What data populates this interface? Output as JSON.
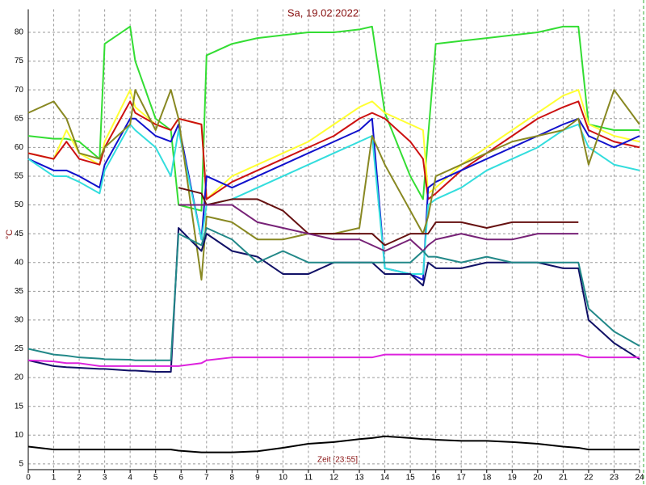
{
  "chart_data": {
    "type": "line",
    "title": "Sa, 19.02.2022",
    "x_label": "Zeit [23:55]",
    "y_label": "°C",
    "x": [
      0,
      1,
      1.5,
      2,
      2.8,
      3,
      4,
      4.2,
      5,
      5.6,
      5.9,
      6.8,
      7,
      8,
      9,
      10,
      11,
      12,
      13,
      13.5,
      14,
      15,
      15.5,
      15.7,
      16,
      17,
      18,
      19,
      20,
      21,
      21.6,
      22,
      23,
      24
    ],
    "xlim": [
      0,
      24
    ],
    "xticks": [
      0,
      1,
      2,
      3,
      4,
      5,
      6,
      7,
      8,
      9,
      10,
      11,
      12,
      13,
      14,
      15,
      16,
      17,
      18,
      19,
      20,
      21,
      22,
      23,
      24
    ],
    "ylim": [
      4,
      84
    ],
    "yticks": [
      5,
      10,
      15,
      20,
      25,
      30,
      35,
      40,
      45,
      50,
      55,
      60,
      65,
      70,
      75,
      80
    ],
    "grid": true,
    "series": [
      {
        "color": "#33dd33",
        "values": [
          62,
          61.5,
          61.5,
          61,
          58,
          78,
          81,
          75,
          65,
          63,
          50,
          49,
          76,
          78,
          79,
          79.5,
          80,
          80,
          80.5,
          81,
          66,
          55,
          51,
          62,
          78,
          78.5,
          79,
          79.5,
          80,
          81,
          81,
          64,
          63,
          63
        ]
      },
      {
        "color": "#ffff33",
        "values": [
          59,
          58,
          63,
          59,
          57,
          61,
          70,
          67,
          64,
          63,
          65,
          64,
          51,
          55,
          57,
          59,
          61,
          64,
          67,
          68,
          66,
          64,
          63,
          52,
          53,
          57,
          60,
          63,
          66,
          69,
          70,
          64,
          62,
          61
        ]
      },
      {
        "color": "#cc1111",
        "values": [
          59,
          58,
          61,
          58,
          57,
          60,
          68,
          66,
          64,
          63,
          65,
          64,
          51,
          54,
          56,
          58,
          60,
          62,
          65,
          66,
          65,
          61,
          58,
          51,
          52,
          56,
          59,
          62,
          65,
          67,
          68,
          63,
          61,
          60
        ]
      },
      {
        "color": "#1111cc",
        "values": [
          58,
          56,
          56,
          55,
          53,
          57,
          65,
          65,
          62,
          61,
          64,
          44,
          55,
          53,
          55,
          57,
          59,
          61,
          63,
          65,
          39,
          38,
          37,
          53,
          54,
          56,
          58,
          60,
          62,
          64,
          65,
          62,
          60,
          62
        ]
      },
      {
        "color": "#33dddd",
        "values": [
          58,
          55,
          55,
          54,
          52,
          56,
          64,
          63,
          60,
          55,
          63,
          44,
          50,
          51,
          53,
          55,
          57,
          59,
          61,
          62,
          39,
          38,
          38,
          50,
          51,
          53,
          56,
          58,
          60,
          63,
          64,
          60,
          57,
          56
        ]
      },
      {
        "color": "#888822",
        "values": [
          66,
          68,
          65,
          59,
          58,
          60,
          64,
          70,
          63,
          70,
          65,
          37,
          48,
          47,
          44,
          44,
          45,
          45,
          46,
          62,
          57,
          49,
          45,
          48,
          55,
          57,
          59,
          61,
          62,
          63,
          65,
          57,
          70,
          64
        ]
      },
      {
        "color": "#661111",
        "values": [
          null,
          null,
          null,
          null,
          null,
          null,
          null,
          null,
          null,
          null,
          53,
          52,
          50,
          51,
          51,
          49,
          45,
          45,
          45,
          45,
          43,
          45,
          45,
          45,
          47,
          47,
          46,
          47,
          47,
          47,
          47,
          null,
          null,
          null
        ]
      },
      {
        "color": "#772277",
        "values": [
          null,
          null,
          null,
          null,
          null,
          null,
          null,
          null,
          null,
          null,
          50,
          50,
          50,
          50,
          47,
          46,
          45,
          44,
          44,
          43,
          42,
          44,
          42,
          43,
          44,
          45,
          44,
          44,
          45,
          45,
          45,
          null,
          null,
          null
        ]
      },
      {
        "color": "#111166",
        "values": [
          23,
          22,
          21.8,
          21.7,
          21.5,
          21.5,
          21.2,
          21.2,
          21,
          21,
          46,
          42,
          45,
          42,
          41,
          38,
          38,
          40,
          40,
          40,
          38,
          38,
          36,
          40,
          39,
          39,
          40,
          40,
          40,
          39,
          39,
          30,
          26,
          23.2
        ]
      },
      {
        "color": "#228888",
        "values": [
          25,
          24,
          23.8,
          23.5,
          23.3,
          23.2,
          23.1,
          23,
          23,
          23,
          45,
          43,
          46,
          44,
          40,
          42,
          40,
          40,
          40,
          40,
          40,
          40,
          42,
          41,
          41,
          40,
          41,
          40,
          40,
          40,
          40,
          32,
          28,
          25.5
        ]
      },
      {
        "color": "#dd22dd",
        "values": [
          23,
          22.8,
          22.5,
          22.5,
          22,
          22,
          22,
          22,
          22,
          22,
          22,
          22.5,
          23,
          23.5,
          23.5,
          23.5,
          23.5,
          23.5,
          23.5,
          23.5,
          24,
          24,
          24,
          24,
          24,
          24,
          24,
          24,
          24,
          24,
          24,
          23.5,
          23.5,
          23.5
        ]
      },
      {
        "color": "#000000",
        "values": [
          8,
          7.5,
          7.5,
          7.5,
          7.5,
          7.5,
          7.5,
          7.5,
          7.5,
          7.5,
          7.3,
          7,
          7,
          7,
          7.2,
          7.8,
          8.5,
          8.8,
          9.3,
          9.5,
          9.8,
          9.5,
          9.3,
          9.3,
          9.2,
          9,
          9,
          8.8,
          8.5,
          8,
          7.8,
          7.5,
          7.5,
          7.5
        ]
      }
    ]
  }
}
